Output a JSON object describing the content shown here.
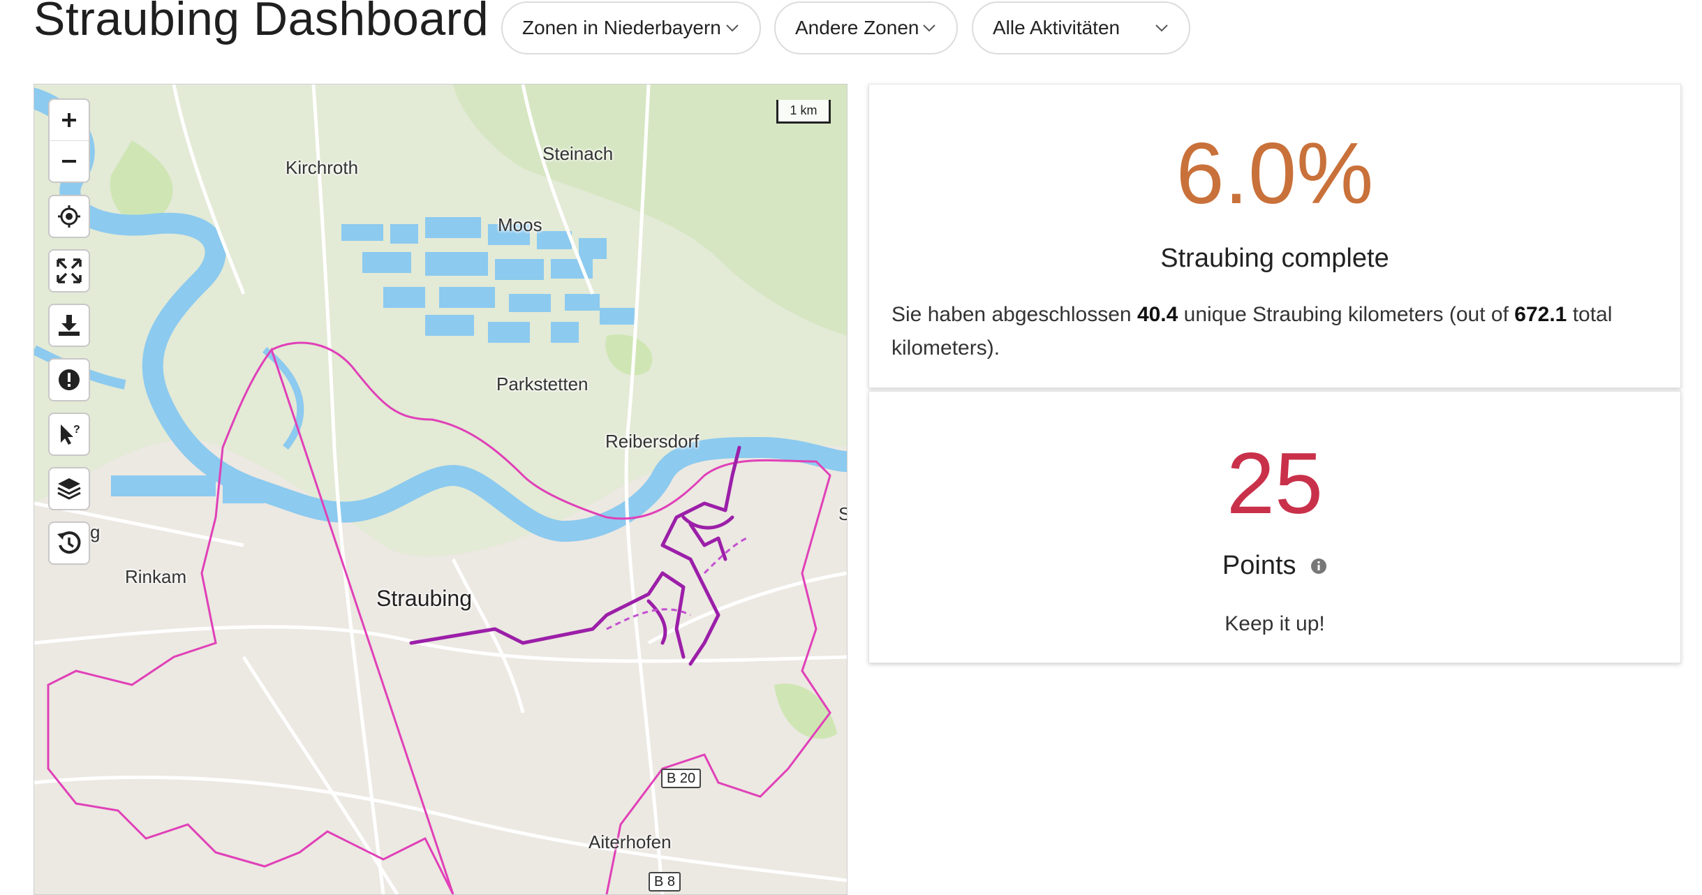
{
  "header": {
    "title": "Straubing Dashboard",
    "dropdowns": [
      {
        "label": "Zonen in Niederbayern"
      },
      {
        "label": "Andere Zonen"
      },
      {
        "label": "Alle Aktivitäten"
      }
    ]
  },
  "map": {
    "scale_label": "1 km",
    "places": {
      "kirchroth": "Kirchroth",
      "steinach": "Steinach",
      "moos": "Moos",
      "parkstetten": "Parkstetten",
      "reibersdorf": "Reibersdorf",
      "rinkam": "Rinkam",
      "straubing": "Straubing",
      "aiterhofen": "Aiterhofen",
      "edge_s": "S",
      "edge_g": "g"
    },
    "roads": {
      "b20": "B 20",
      "b8": "B 8"
    },
    "controls": [
      "zoom-in-icon",
      "zoom-out-icon",
      "locate-icon",
      "fullscreen-icon",
      "download-icon",
      "alert-icon",
      "cursor-help-icon",
      "layers-icon",
      "history-icon"
    ],
    "colors": {
      "water": "#8ccaef",
      "green": "#cfe6b4",
      "zone": "#e040b8",
      "track": "#9b1fa8"
    }
  },
  "completion_card": {
    "percent": "6.0%",
    "percent_color": "#c9713a",
    "subtitle": "Straubing complete",
    "text_prefix": "Sie haben abgeschlossen",
    "unique_km": "40.4",
    "text_middle": "unique Straubing kilometers (out of",
    "total_km": "672.1",
    "text_suffix": "total kilometers)."
  },
  "points_card": {
    "points": "25",
    "points_color": "#c9304a",
    "label": "Points",
    "message": "Keep it up!"
  }
}
